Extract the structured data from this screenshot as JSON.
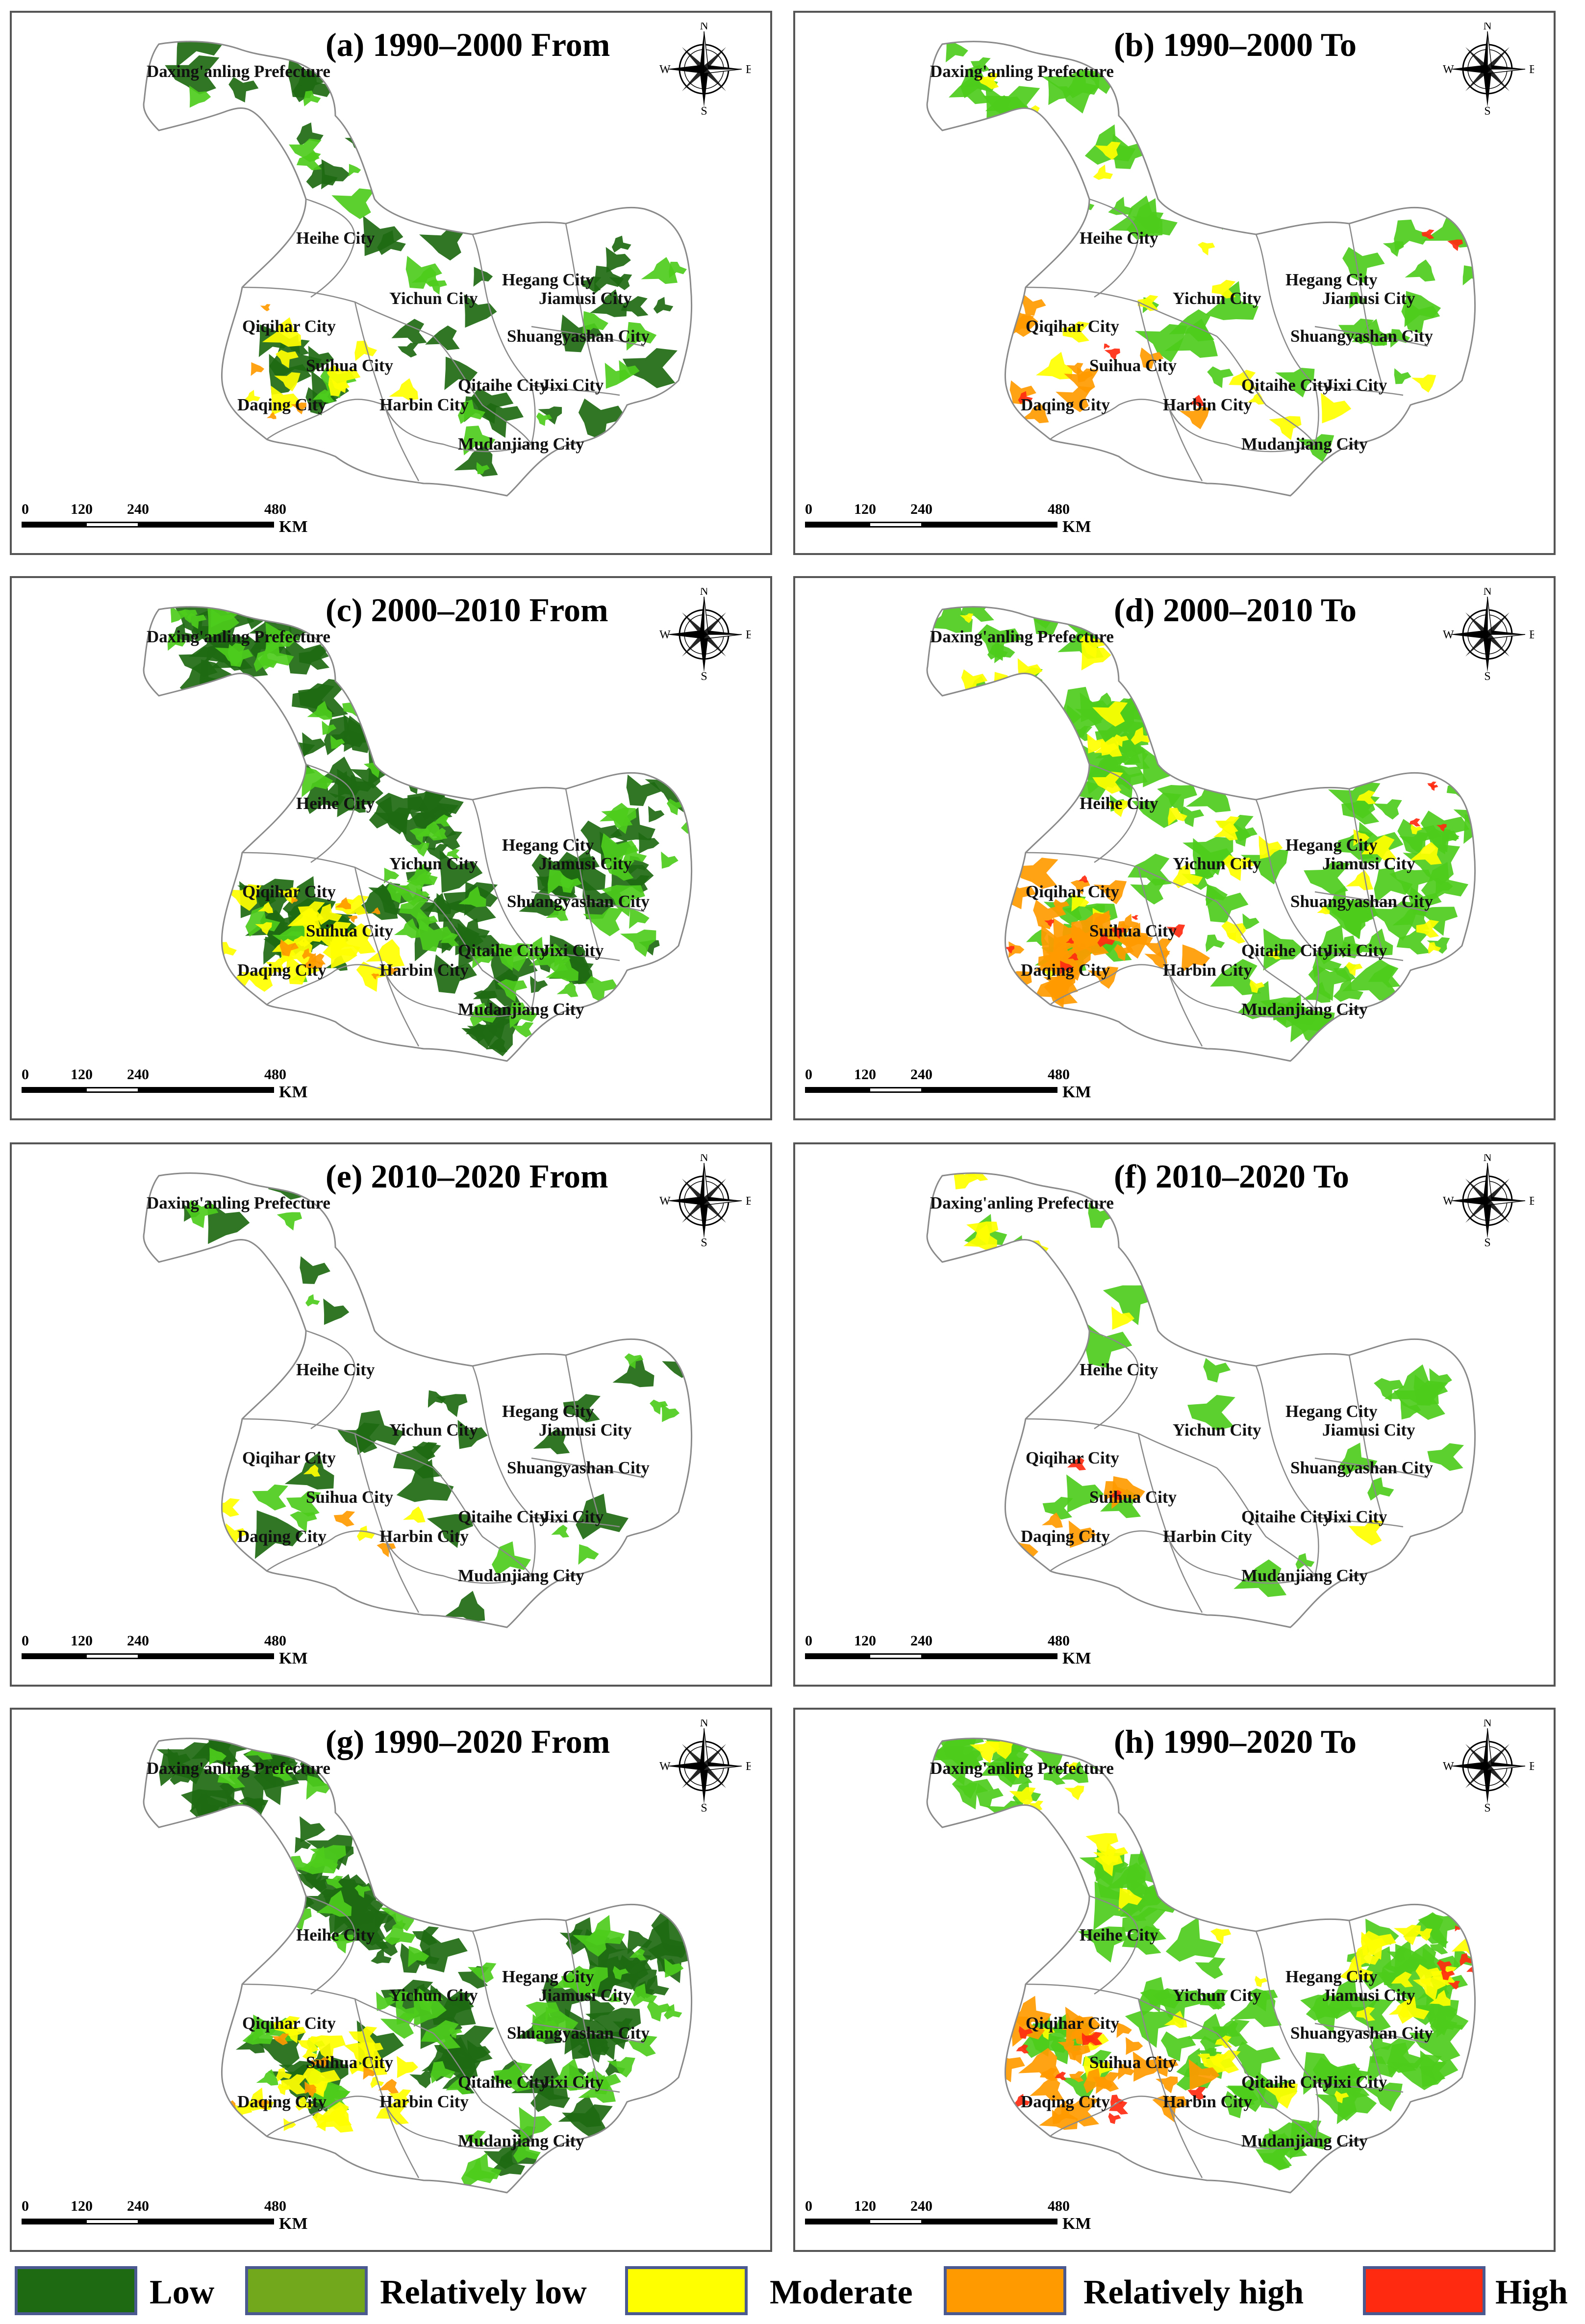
{
  "panels": [
    {
      "title": "(a) 1990–2000 From",
      "period": "1990–2000",
      "view": "From"
    },
    {
      "title": "(b) 1990–2000 To",
      "period": "1990–2000",
      "view": "To"
    },
    {
      "title": "(c) 2000–2010 From",
      "period": "2000–2010",
      "view": "From"
    },
    {
      "title": "(d) 2000–2010 To",
      "period": "2000–2010",
      "view": "To"
    },
    {
      "title": "(e) 2010–2020 From",
      "period": "2010–2020",
      "view": "From"
    },
    {
      "title": "(f) 2010–2020 To",
      "period": "2010–2020",
      "view": "To"
    },
    {
      "title": "(g) 1990–2020 From",
      "period": "1990–2020",
      "view": "From"
    },
    {
      "title": "(h) 1990–2020 To",
      "period": "1990–2020",
      "view": "To"
    }
  ],
  "regions": {
    "daxinganling": "Daxing'anling Prefecture",
    "heihe": "Heihe City",
    "hegang": "Hegang City",
    "yichun": "Yichun City",
    "jiamusi": "Jiamusi City",
    "qiqihar": "Qiqihar City",
    "shuangyashan": "Shuangyashan City",
    "suihua": "Suihua City",
    "qitaihe": "Qitaihe City",
    "jixi": "Jixi City",
    "daqing": "Daqing City",
    "harbin": "Harbin City",
    "mudanjiang": "Mudanjiang City"
  },
  "compass": {
    "n": "N",
    "s": "S",
    "e": "E",
    "w": "W"
  },
  "scale_bar": {
    "ticks": [
      "0",
      "120",
      "240",
      "480"
    ],
    "unit": "KM"
  },
  "legend": {
    "items": [
      {
        "label": "Low",
        "color": "#1e6a12"
      },
      {
        "label": "Relatively low",
        "color": "#72a81c"
      },
      {
        "label": "Moderate",
        "color": "#ffff00"
      },
      {
        "label": "Relatively high",
        "color": "#ff9a00"
      },
      {
        "label": "High",
        "color": "#ff2a10"
      }
    ]
  },
  "colors": {
    "boundary": "#8a8a8a",
    "panel_border": "#555555",
    "bright_green": "#4dcc1c"
  }
}
